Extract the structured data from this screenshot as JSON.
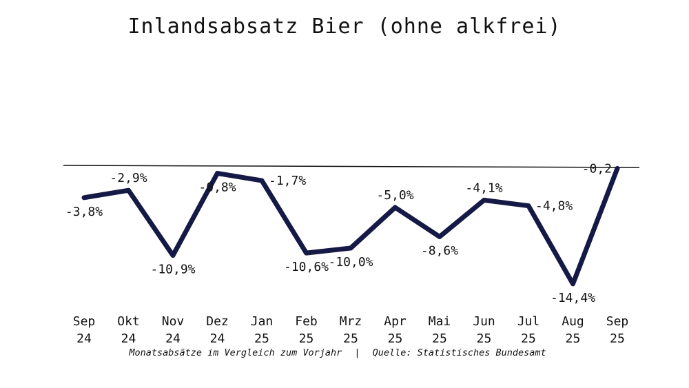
{
  "colors": {
    "line": "#141a45",
    "zero_line": "#111111",
    "text": "#111111",
    "background": "#ffffff"
  },
  "chart_data": {
    "type": "line",
    "title": "Inlandsabsatz Bier (ohne alkfrei)",
    "categories": [
      {
        "month": "Sep",
        "year": "24"
      },
      {
        "month": "Okt",
        "year": "24"
      },
      {
        "month": "Nov",
        "year": "24"
      },
      {
        "month": "Dez",
        "year": "24"
      },
      {
        "month": "Jan",
        "year": "25"
      },
      {
        "month": "Feb",
        "year": "25"
      },
      {
        "month": "Mrz",
        "year": "25"
      },
      {
        "month": "Apr",
        "year": "25"
      },
      {
        "month": "Mai",
        "year": "25"
      },
      {
        "month": "Jun",
        "year": "25"
      },
      {
        "month": "Jul",
        "year": "25"
      },
      {
        "month": "Aug",
        "year": "25"
      },
      {
        "month": "Sep",
        "year": "25"
      }
    ],
    "values": [
      -3.8,
      -2.9,
      -10.9,
      -0.8,
      -1.7,
      -10.6,
      -10.0,
      -5.0,
      -8.6,
      -4.1,
      -4.8,
      -14.4,
      -0.2
    ],
    "data_labels": [
      "-3,8%",
      "-2,9%",
      "-10,9%",
      "-0,8%",
      "-1,7%",
      "-10,6%",
      "-10,0%",
      "-5,0%",
      "-8,6%",
      "-4,1%",
      "-4,8%",
      "-14,4%",
      "-0,2"
    ],
    "label_positions": [
      "below",
      "above",
      "below",
      "below",
      "right",
      "below",
      "below",
      "above",
      "below",
      "above",
      "right",
      "below",
      "left"
    ],
    "ylim": [
      -16,
      0
    ],
    "zero_line": true,
    "grid": false,
    "footer": {
      "left": "Monatsabsätze im Vergleich zum Vorjahr",
      "separator": "|",
      "right": "Quelle: Statistisches Bundesamt"
    }
  }
}
